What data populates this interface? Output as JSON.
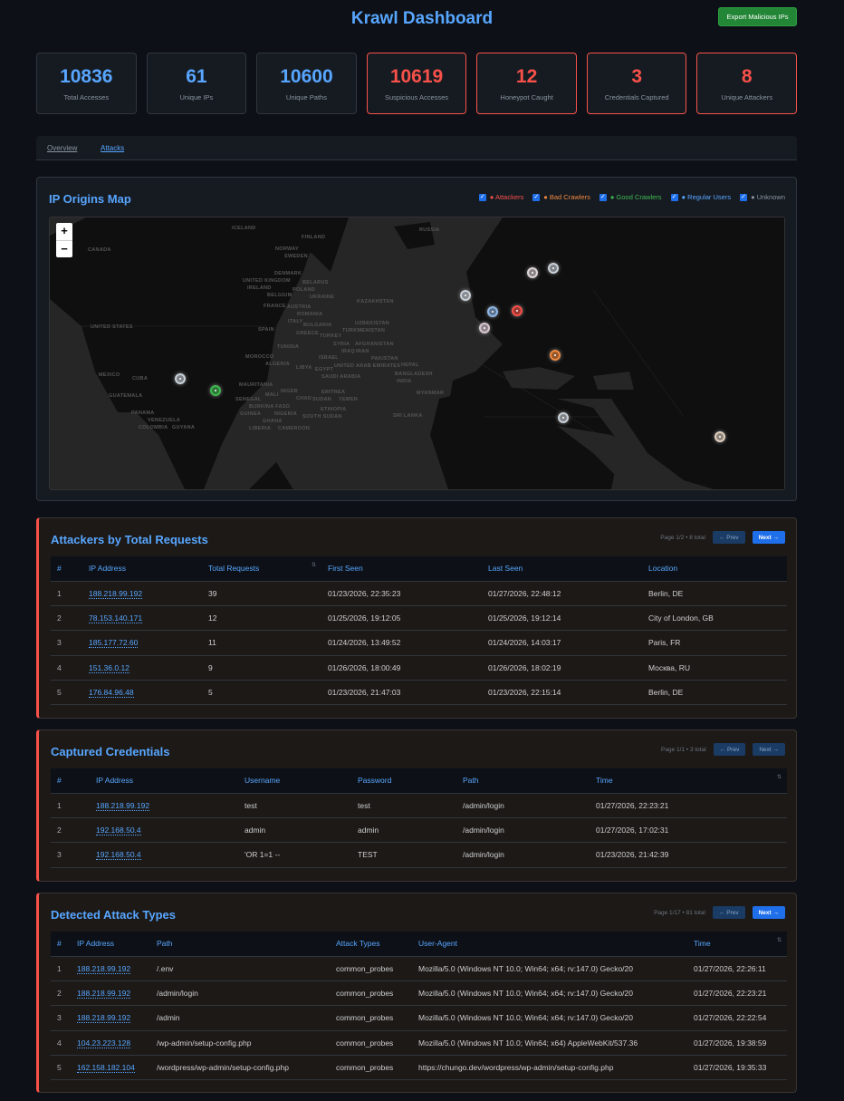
{
  "header": {
    "title": "Krawl Dashboard",
    "export_label": "Export Malicious IPs"
  },
  "stats": [
    {
      "value": "10836",
      "label": "Total Accesses",
      "alert": false
    },
    {
      "value": "61",
      "label": "Unique IPs",
      "alert": false
    },
    {
      "value": "10600",
      "label": "Unique Paths",
      "alert": false
    },
    {
      "value": "10619",
      "label": "Suspicious Accesses",
      "alert": true
    },
    {
      "value": "12",
      "label": "Honeypot Caught",
      "alert": true
    },
    {
      "value": "3",
      "label": "Credentials Captured",
      "alert": true
    },
    {
      "value": "8",
      "label": "Unique Attackers",
      "alert": true
    }
  ],
  "tabs": [
    {
      "label": "Overview",
      "active": false
    },
    {
      "label": "Attacks",
      "active": true
    }
  ],
  "map": {
    "title": "IP Origins Map",
    "zoom_in": "+",
    "zoom_out": "−",
    "legend": [
      {
        "label": "● Attackers",
        "color": "#f85149",
        "checked": true
      },
      {
        "label": "● Bad Crawlers",
        "color": "#f0883e",
        "checked": true
      },
      {
        "label": "● Good Crawlers",
        "color": "#3fb950",
        "checked": true
      },
      {
        "label": "● Regular Users",
        "color": "#58a6ff",
        "checked": true
      },
      {
        "label": "● Unknown",
        "color": "#8b949e",
        "checked": true
      }
    ],
    "labels": [
      "CANADA",
      "ICELAND",
      "FINLAND",
      "NORWAY",
      "SWEDEN",
      "RUSSIA",
      "DENMARK",
      "UNITED KINGDOM",
      "IRELAND",
      "BELARUS",
      "POLAND",
      "BELGIUM",
      "UKRAINE",
      "FRANCE",
      "AUSTRIA",
      "ROMANIA",
      "KAZAKHSTAN",
      "UNITED STATES",
      "ITALY",
      "BULGARIA",
      "SPAIN",
      "GREECE",
      "TURKEY",
      "UZBEKISTAN",
      "TURKMENISTAN",
      "TUNISIA",
      "SYRIA",
      "IRAQ",
      "IRAN",
      "AFGHANISTAN",
      "MOROCCO",
      "ISRAEL",
      "PAKISTAN",
      "ALGERIA",
      "LIBYA",
      "EGYPT",
      "SAUDI ARABIA",
      "UNITED ARAB EMIRATES",
      "NEPAL",
      "MEXICO",
      "CUBA",
      "BANGLADESH",
      "INDIA",
      "MAURITANIA",
      "NIGER",
      "MALI",
      "CHAD",
      "SUDAN",
      "ERITREA",
      "YEMEN",
      "GUATEMALA",
      "SENEGAL",
      "BURKINA FASO",
      "GUINEA",
      "NIGERIA",
      "ETHIOPIA",
      "PANAMA",
      "VENEZUELA",
      "GHANA",
      "SOUTH SUDAN",
      "SRI LANKA",
      "MYANMAR",
      "COLOMBIA",
      "GUYANA",
      "CAMEROON",
      "LIBERIA"
    ],
    "markers": [
      {
        "category": "unknown",
        "color": "#c9d1d9"
      },
      {
        "category": "good_crawler",
        "color": "#3fb950"
      },
      {
        "category": "unknown",
        "color": "#c9d1d9"
      },
      {
        "category": "regular_user",
        "color": "#8fb8e8"
      },
      {
        "category": "unknown",
        "color": "#d8c8d0"
      },
      {
        "category": "attacker",
        "color": "#f85149"
      },
      {
        "category": "unknown",
        "color": "#e0d6da"
      },
      {
        "category": "unknown",
        "color": "#c9d1d9"
      },
      {
        "category": "bad_crawler",
        "color": "#f0883e"
      },
      {
        "category": "unknown",
        "color": "#c9d1d9"
      },
      {
        "category": "unknown",
        "color": "#e0d0c0"
      }
    ]
  },
  "attackers": {
    "title": "Attackers by Total Requests",
    "page_info": "Page 1/2 • 8 total",
    "prev": "← Prev",
    "next": "Next →",
    "columns": [
      "#",
      "IP Address",
      "Total Requests",
      "First Seen",
      "Last Seen",
      "Location"
    ],
    "sort_icon": "⇅",
    "rows": [
      [
        "1",
        "188.218.99.192",
        "39",
        "01/23/2026, 22:35:23",
        "01/27/2026, 22:48:12",
        "Berlin, DE"
      ],
      [
        "2",
        "78.153.140.171",
        "12",
        "01/25/2026, 19:12:05",
        "01/25/2026, 19:12:14",
        "City of London, GB"
      ],
      [
        "3",
        "185.177.72.60",
        "11",
        "01/24/2026, 13:49:52",
        "01/24/2026, 14:03:17",
        "Paris, FR"
      ],
      [
        "4",
        "151.36.0.12",
        "9",
        "01/26/2026, 18:00:49",
        "01/26/2026, 18:02:19",
        "Москва, RU"
      ],
      [
        "5",
        "176.84.96.48",
        "5",
        "01/23/2026, 21:47:03",
        "01/23/2026, 22:15:14",
        "Berlin, DE"
      ]
    ]
  },
  "credentials": {
    "title": "Captured Credentials",
    "page_info": "Page 1/1 • 3 total",
    "prev": "← Prev",
    "next": "Next →",
    "columns": [
      "#",
      "IP Address",
      "Username",
      "Password",
      "Path",
      "Time"
    ],
    "sort_icon": "⇅",
    "rows": [
      [
        "1",
        "188.218.99.192",
        "test",
        "test",
        "/admin/login",
        "01/27/2026, 22:23:21"
      ],
      [
        "2",
        "192.168.50.4",
        "admin",
        "admin",
        "/admin/login",
        "01/27/2026, 17:02:31"
      ],
      [
        "3",
        "192.168.50.4",
        "'OR 1=1 --",
        "TEST",
        "/admin/login",
        "01/23/2026, 21:42:39"
      ]
    ]
  },
  "attacks": {
    "title": "Detected Attack Types",
    "page_info": "Page 1/17 • 81 total",
    "prev": "← Prev",
    "next": "Next →",
    "columns": [
      "#",
      "IP Address",
      "Path",
      "Attack Types",
      "User-Agent",
      "Time"
    ],
    "sort_icon": "⇅",
    "rows": [
      [
        "1",
        "188.218.99.192",
        "/.env",
        "common_probes",
        "Mozilla/5.0 (Windows NT 10.0; Win64; x64; rv:147.0) Gecko/20",
        "01/27/2026, 22:26:11"
      ],
      [
        "2",
        "188.218.99.192",
        "/admin/login",
        "common_probes",
        "Mozilla/5.0 (Windows NT 10.0; Win64; x64; rv:147.0) Gecko/20",
        "01/27/2026, 22:23:21"
      ],
      [
        "3",
        "188.218.99.192",
        "/admin",
        "common_probes",
        "Mozilla/5.0 (Windows NT 10.0; Win64; x64; rv:147.0) Gecko/20",
        "01/27/2026, 22:22:54"
      ],
      [
        "4",
        "104.23.223.128",
        "/wp-admin/setup-config.php",
        "common_probes",
        "Mozilla/5.0 (Windows NT 10.0; Win64; x64) AppleWebKit/537.36",
        "01/27/2026, 19:38:59"
      ],
      [
        "5",
        "162.158.182.104",
        "/wordpress/wp-admin/setup-config.php",
        "common_probes",
        "https://chungo.dev/wordpress/wp-admin/setup-config.php",
        "01/27/2026, 19:35:33"
      ]
    ]
  }
}
